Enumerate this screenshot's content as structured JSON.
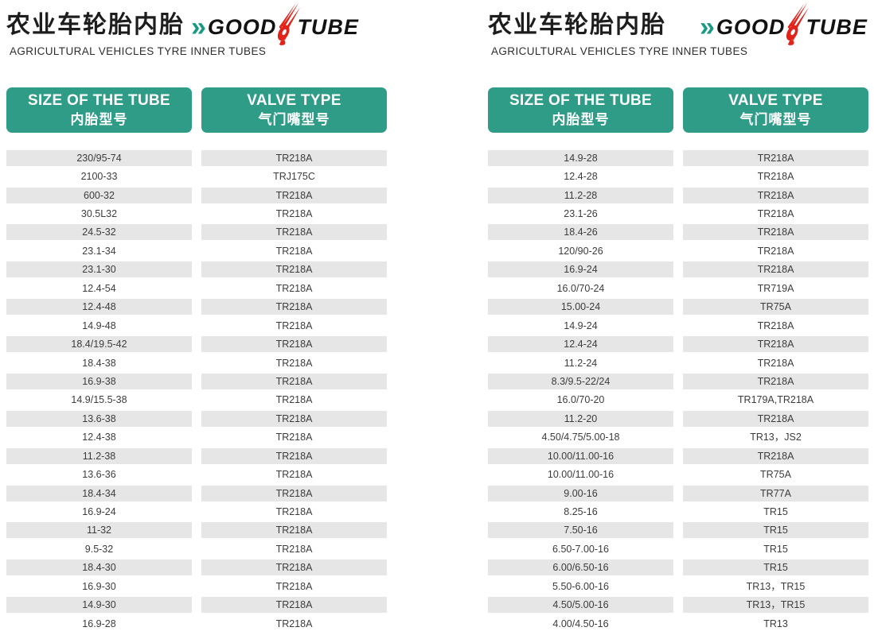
{
  "brand": {
    "title_cn": "农业车轮胎内胎",
    "subtitle_en": "AGRICULTURAL VEHICLES TYRE INNER TUBES",
    "chevron": "»",
    "logo_word1": "GOOD",
    "logo_word2": "TUBE"
  },
  "colors": {
    "teal": "#2E9C87",
    "row_gray": "#E6E6E7",
    "logo_red": "#E2231A",
    "logo_black": "#121212"
  },
  "table_header": {
    "size_en": "SIZE OF THE TUBE",
    "size_cn": "内胎型号",
    "valve_en": "VALVE TYPE",
    "valve_cn": "气门嘴型号"
  },
  "left_table": {
    "rows": [
      [
        "230/95-74",
        "TR218A"
      ],
      [
        "2100-33",
        "TRJ175C"
      ],
      [
        "600-32",
        "TR218A"
      ],
      [
        "30.5L32",
        "TR218A"
      ],
      [
        "24.5-32",
        "TR218A"
      ],
      [
        "23.1-34",
        "TR218A"
      ],
      [
        "23.1-30",
        "TR218A"
      ],
      [
        "12.4-54",
        "TR218A"
      ],
      [
        "12.4-48",
        "TR218A"
      ],
      [
        "14.9-48",
        "TR218A"
      ],
      [
        "18.4/19.5-42",
        "TR218A"
      ],
      [
        "18.4-38",
        "TR218A"
      ],
      [
        "16.9-38",
        "TR218A"
      ],
      [
        "14.9/15.5-38",
        "TR218A"
      ],
      [
        "13.6-38",
        "TR218A"
      ],
      [
        "12.4-38",
        "TR218A"
      ],
      [
        "11.2-38",
        "TR218A"
      ],
      [
        "13.6-36",
        "TR218A"
      ],
      [
        "18.4-34",
        "TR218A"
      ],
      [
        "16.9-24",
        "TR218A"
      ],
      [
        "11-32",
        "TR218A"
      ],
      [
        "9.5-32",
        "TR218A"
      ],
      [
        "18.4-30",
        "TR218A"
      ],
      [
        "16.9-30",
        "TR218A"
      ],
      [
        "14.9-30",
        "TR218A"
      ],
      [
        "16.9-28",
        "TR218A"
      ]
    ]
  },
  "right_table": {
    "rows": [
      [
        "14.9-28",
        "TR218A"
      ],
      [
        "12.4-28",
        "TR218A"
      ],
      [
        "11.2-28",
        "TR218A"
      ],
      [
        "23.1-26",
        "TR218A"
      ],
      [
        "18.4-26",
        "TR218A"
      ],
      [
        "120/90-26",
        "TR218A"
      ],
      [
        "16.9-24",
        "TR218A"
      ],
      [
        "16.0/70-24",
        "TR719A"
      ],
      [
        "15.00-24",
        "TR75A"
      ],
      [
        "14.9-24",
        "TR218A"
      ],
      [
        "12.4-24",
        "TR218A"
      ],
      [
        "11.2-24",
        "TR218A"
      ],
      [
        "8.3/9.5-22/24",
        "TR218A"
      ],
      [
        "16.0/70-20",
        "TR179A,TR218A"
      ],
      [
        "11.2-20",
        "TR218A"
      ],
      [
        "4.50/4.75/5.00-18",
        "TR13，JS2"
      ],
      [
        "10.00/11.00-16",
        "TR218A"
      ],
      [
        "10.00/11.00-16",
        "TR75A"
      ],
      [
        "9.00-16",
        "TR77A"
      ],
      [
        "8.25-16",
        "TR15"
      ],
      [
        "7.50-16",
        "TR15"
      ],
      [
        "6.50-7.00-16",
        "TR15"
      ],
      [
        "6.00/6.50-16",
        "TR15"
      ],
      [
        "5.50-6.00-16",
        "TR13，TR15"
      ],
      [
        "4.50/5.00-16",
        "TR13，TR15"
      ],
      [
        "4.00/4.50-16",
        "TR13"
      ]
    ]
  }
}
